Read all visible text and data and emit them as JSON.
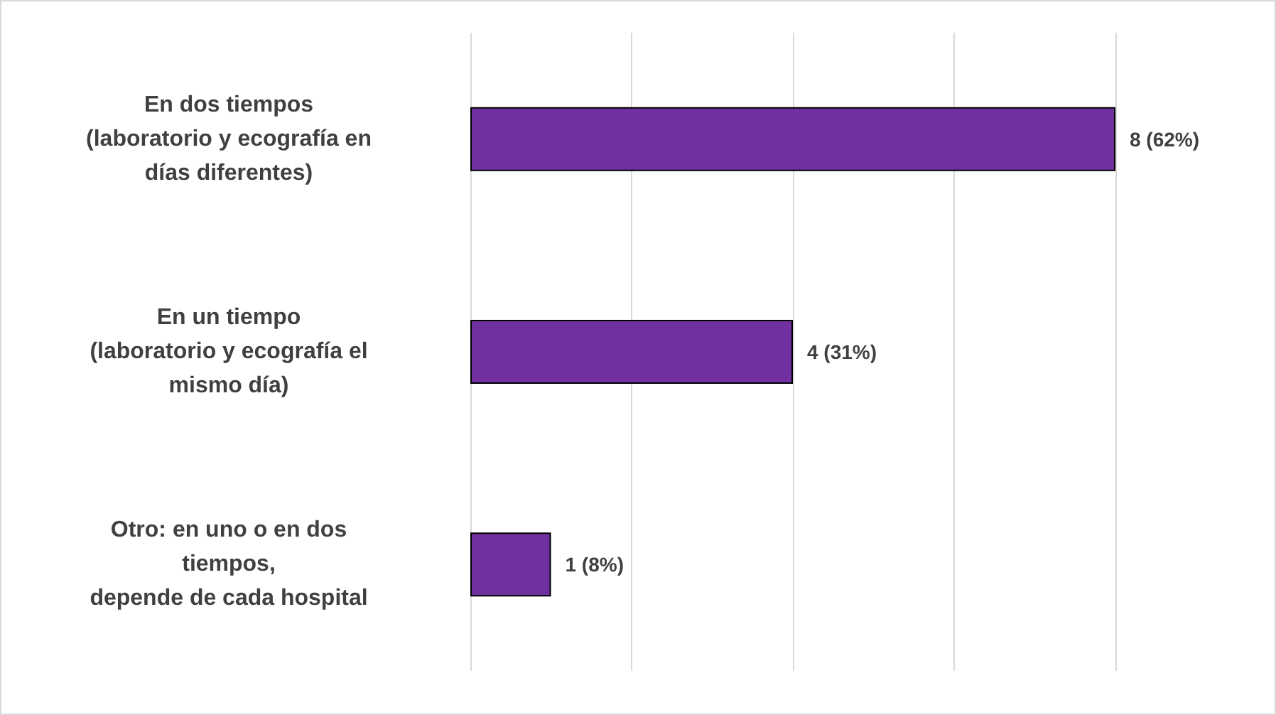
{
  "chart_data": {
    "type": "bar",
    "orientation": "horizontal",
    "categories": [
      "En dos tiempos\n(laboratorio y ecografía en\ndías diferentes)",
      "En un tiempo\n(laboratorio y ecografía el\nmismo día)",
      "Otro: en uno o en dos\ntiempos,\ndepende de cada hospital"
    ],
    "values": [
      8,
      4,
      1
    ],
    "value_labels": [
      "8 (62%)",
      "4 (31%)",
      "1 (8%)"
    ],
    "color": "#7030a0",
    "xlim": [
      0,
      8
    ],
    "xticks": [
      0,
      2,
      4,
      6,
      8
    ],
    "tick_labels": "y",
    "grid": "x"
  }
}
